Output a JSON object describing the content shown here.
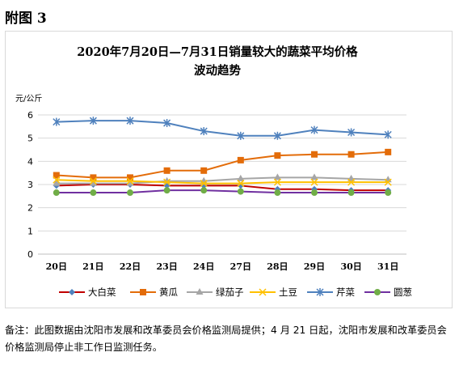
{
  "figure_label": "附图 3",
  "note": "备注：此图数据由沈阳市发展和改革委员会价格监测局提供；4 月 21 日起，沈阳市发展和改革委员会价格监测局停止非工作日监测任务。",
  "chart_data": {
    "type": "line",
    "title_lines": [
      "2020年7月20日—7月31日销量较大的蔬菜平均价格",
      "波动趋势"
    ],
    "ylabel": "元/公斤",
    "xlabel": "",
    "categories": [
      "20日",
      "21日",
      "22日",
      "23日",
      "24日",
      "27日",
      "28日",
      "29日",
      "30日",
      "31日"
    ],
    "ylim": [
      0,
      6
    ],
    "yticks": [
      0,
      1,
      2,
      3,
      4,
      5,
      6
    ],
    "grid": true,
    "legend_position": "bottom",
    "series": [
      {
        "name": "大白菜",
        "color": "#c00000",
        "marker": "diamond",
        "marker_color": "#4f81bd",
        "values": [
          2.95,
          3.0,
          3.0,
          2.95,
          2.95,
          2.95,
          2.8,
          2.8,
          2.75,
          2.75
        ]
      },
      {
        "name": "黄瓜",
        "color": "#e36c09",
        "marker": "square",
        "marker_color": "#e36c09",
        "values": [
          3.4,
          3.3,
          3.3,
          3.6,
          3.6,
          4.05,
          4.25,
          4.3,
          4.3,
          4.4
        ]
      },
      {
        "name": "绿茄子",
        "color": "#a6a6a6",
        "marker": "triangle",
        "marker_color": "#a6a6a6",
        "values": [
          3.05,
          3.05,
          3.05,
          3.15,
          3.15,
          3.25,
          3.3,
          3.3,
          3.25,
          3.2
        ]
      },
      {
        "name": "土豆",
        "color": "#ffc000",
        "marker": "x",
        "marker_color": "#ffc000",
        "values": [
          3.2,
          3.15,
          3.15,
          3.1,
          3.05,
          3.05,
          3.1,
          3.1,
          3.1,
          3.1
        ]
      },
      {
        "name": "芹菜",
        "color": "#4f81bd",
        "marker": "star",
        "marker_color": "#4f81bd",
        "values": [
          5.7,
          5.75,
          5.75,
          5.65,
          5.3,
          5.1,
          5.1,
          5.35,
          5.25,
          5.15
        ]
      },
      {
        "name": "圆葱",
        "color": "#7030a0",
        "marker": "circle",
        "marker_color": "#70ad47",
        "values": [
          2.65,
          2.65,
          2.65,
          2.75,
          2.75,
          2.7,
          2.65,
          2.65,
          2.65,
          2.65
        ]
      }
    ]
  }
}
